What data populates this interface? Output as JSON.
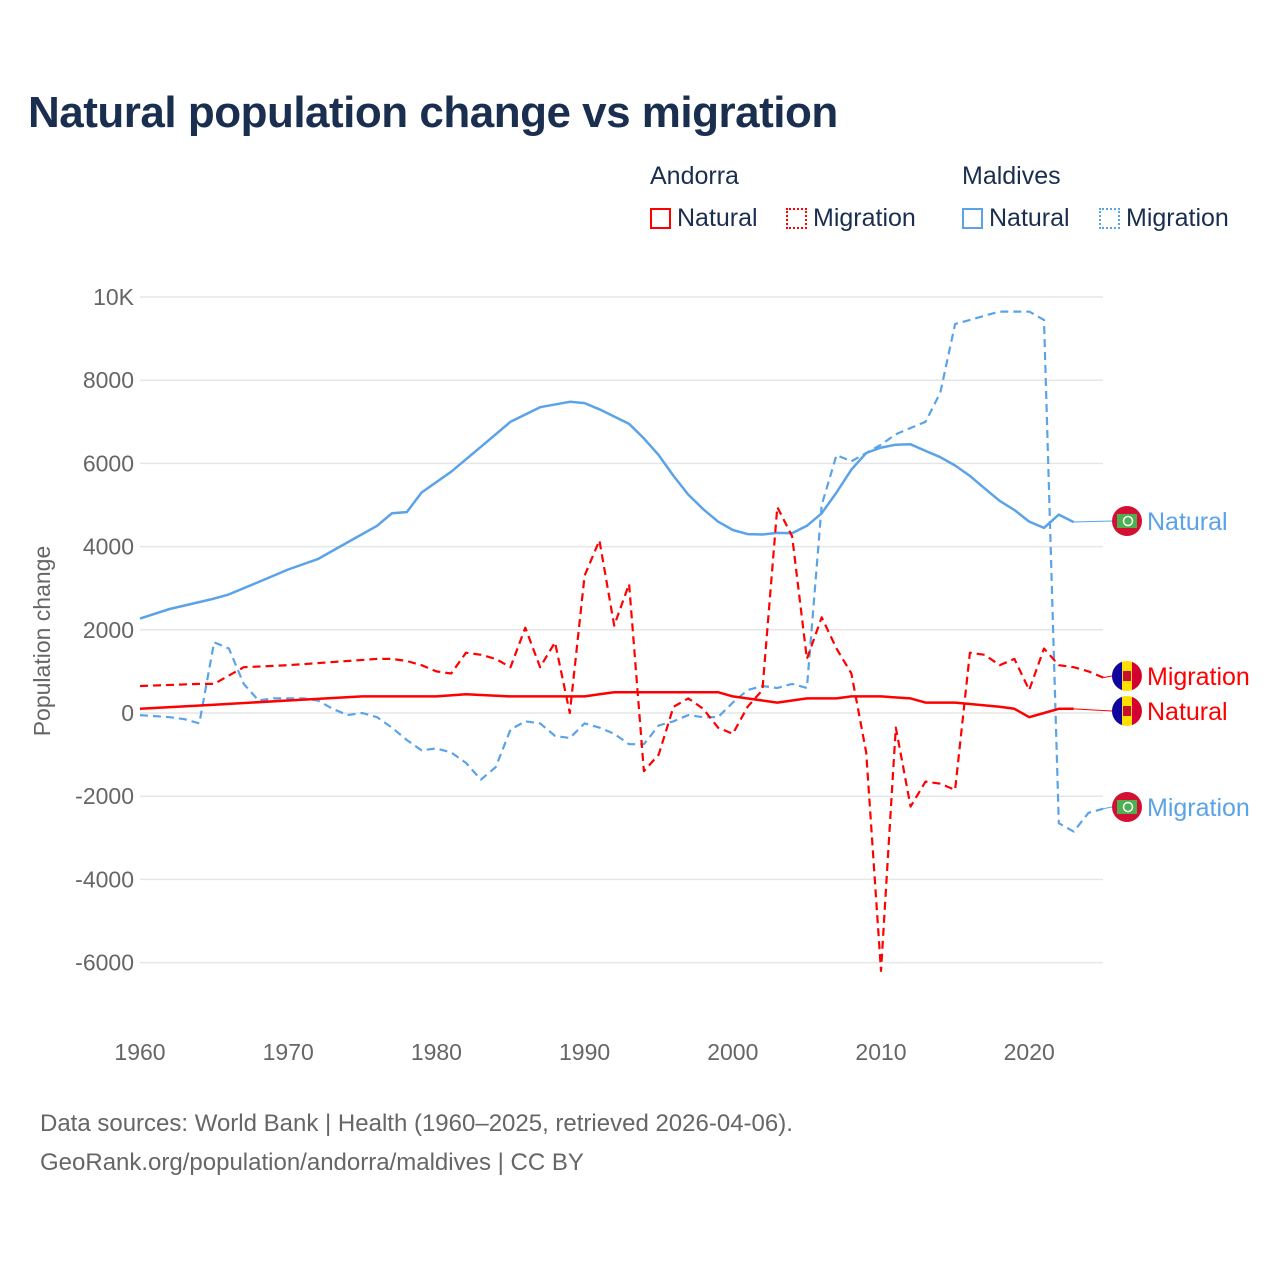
{
  "chart_data": {
    "type": "line",
    "title": "Natural population change vs migration",
    "ylabel": "Population change",
    "xlabel": "",
    "xlim": [
      1960,
      2025
    ],
    "ylim": [
      -7000,
      10000
    ],
    "x_ticks": [
      "1960",
      "1970",
      "1980",
      "1990",
      "2000",
      "2010",
      "2020"
    ],
    "y_ticks": [
      {
        "v": 10000,
        "label": "10K"
      },
      {
        "v": 8000,
        "label": "8000"
      },
      {
        "v": 6000,
        "label": "6000"
      },
      {
        "v": 4000,
        "label": "4000"
      },
      {
        "v": 2000,
        "label": "2000"
      },
      {
        "v": 0,
        "label": "0"
      },
      {
        "v": -2000,
        "label": "-2000"
      },
      {
        "v": -4000,
        "label": "-4000"
      },
      {
        "v": -6000,
        "label": "-6000"
      }
    ],
    "grid": true,
    "legend": {
      "placement": "top-right",
      "groups": [
        "Andorra",
        "Maldives"
      ],
      "items": [
        "Natural",
        "Migration",
        "Natural",
        "Migration"
      ]
    },
    "series": [
      {
        "name": "Maldives Natural",
        "country": "Maldives",
        "kind": "Natural",
        "color": "#5ba3e8",
        "dash": false,
        "end_label": "Natural",
        "x": [
          1960,
          1962,
          1965,
          1966,
          1968,
          1970,
          1972,
          1974,
          1976,
          1977,
          1978,
          1979,
          1981,
          1983,
          1985,
          1987,
          1989,
          1990,
          1991,
          1993,
          1994,
          1995,
          1996,
          1997,
          1998,
          1999,
          2000,
          2001,
          2002,
          2003,
          2004,
          2005,
          2006,
          2007,
          2008,
          2009,
          2010,
          2011,
          2012,
          2013,
          2014,
          2015,
          2016,
          2017,
          2018,
          2019,
          2020,
          2021,
          2022,
          2023
        ],
        "y": [
          2270,
          2500,
          2750,
          2850,
          3150,
          3450,
          3700,
          4100,
          4500,
          4800,
          4830,
          5300,
          5800,
          6400,
          7000,
          7350,
          7480,
          7450,
          7300,
          6950,
          6600,
          6200,
          5700,
          5250,
          4900,
          4600,
          4400,
          4300,
          4290,
          4330,
          4320,
          4500,
          4800,
          5300,
          5850,
          6250,
          6380,
          6450,
          6460,
          6300,
          6150,
          5950,
          5700,
          5400,
          5100,
          4880,
          4600,
          4450,
          4770,
          4590
        ]
      },
      {
        "name": "Maldives Migration",
        "country": "Maldives",
        "kind": "Migration",
        "color": "#5ba3e8",
        "dash": true,
        "end_label": "Migration",
        "x": [
          1960,
          1962,
          1963,
          1964,
          1965,
          1966,
          1967,
          1968,
          1969,
          1970,
          1971,
          1972,
          1973,
          1974,
          1975,
          1976,
          1977,
          1978,
          1979,
          1980,
          1981,
          1982,
          1983,
          1984,
          1985,
          1986,
          1987,
          1988,
          1989,
          1990,
          1991,
          1992,
          1993,
          1994,
          1995,
          1996,
          1997,
          1998,
          1999,
          2000,
          2001,
          2002,
          2003,
          2004,
          2005,
          2006,
          2007,
          2008,
          2009,
          2010,
          2011,
          2012,
          2013,
          2014,
          2015,
          2016,
          2017,
          2018,
          2019,
          2020,
          2021,
          2022,
          2023,
          2024,
          2025
        ],
        "y": [
          -50,
          -100,
          -150,
          -250,
          1700,
          1550,
          700,
          300,
          350,
          350,
          350,
          300,
          100,
          -50,
          0,
          -100,
          -350,
          -650,
          -900,
          -850,
          -950,
          -1200,
          -1600,
          -1300,
          -400,
          -200,
          -250,
          -550,
          -600,
          -250,
          -350,
          -500,
          -750,
          -750,
          -300,
          -200,
          -50,
          -100,
          -100,
          250,
          550,
          650,
          600,
          700,
          600,
          5000,
          6200,
          6050,
          6250,
          6450,
          6700,
          6850,
          7000,
          7700,
          9350,
          9450,
          9550,
          9650,
          9650,
          9650,
          9450,
          -2650,
          -2850,
          -2400,
          -2300
        ]
      },
      {
        "name": "Andorra Natural",
        "country": "Andorra",
        "kind": "Natural",
        "color": "#ff0000",
        "dash": false,
        "end_label": "Natural",
        "x": [
          1960,
          1965,
          1970,
          1975,
          1980,
          1982,
          1985,
          1990,
          1991,
          1992,
          1995,
          1999,
          2000,
          2002,
          2003,
          2005,
          2007,
          2008,
          2010,
          2012,
          2013,
          2015,
          2018,
          2019,
          2020,
          2021,
          2022,
          2023
        ],
        "y": [
          100,
          200,
          300,
          400,
          400,
          450,
          400,
          400,
          450,
          500,
          500,
          500,
          400,
          300,
          250,
          350,
          350,
          400,
          400,
          350,
          250,
          250,
          150,
          100,
          -100,
          0,
          100,
          100
        ]
      },
      {
        "name": "Andorra Migration",
        "country": "Andorra",
        "kind": "Migration",
        "color": "#ff0000",
        "dash": true,
        "end_label": "Migration",
        "x": [
          1960,
          1964,
          1965,
          1966,
          1967,
          1970,
          1974,
          1976,
          1977,
          1978,
          1979,
          1980,
          1981,
          1982,
          1983,
          1984,
          1985,
          1986,
          1987,
          1988,
          1989,
          1990,
          1991,
          1992,
          1993,
          1994,
          1995,
          1996,
          1997,
          1998,
          1999,
          2000,
          2001,
          2002,
          2003,
          2004,
          2005,
          2006,
          2007,
          2008,
          2009,
          2010,
          2011,
          2012,
          2013,
          2014,
          2015,
          2016,
          2017,
          2018,
          2019,
          2020,
          2021,
          2022,
          2023,
          2024,
          2025
        ],
        "y": [
          650,
          700,
          700,
          900,
          1100,
          1150,
          1250,
          1300,
          1300,
          1250,
          1150,
          1000,
          950,
          1450,
          1400,
          1300,
          1100,
          2050,
          1100,
          1700,
          0,
          3300,
          4150,
          2100,
          3100,
          -1400,
          -1000,
          150,
          350,
          100,
          -350,
          -500,
          150,
          550,
          4950,
          4250,
          1300,
          2300,
          1550,
          950,
          -950,
          -6200,
          -350,
          -2250,
          -1650,
          -1700,
          -1850,
          1450,
          1400,
          1150,
          1300,
          550,
          1550,
          1150,
          1100,
          1000,
          850
        ]
      }
    ]
  },
  "sources": {
    "line1": "Data sources: World Bank | Health (1960–2025, retrieved 2026-04-06).",
    "line2": "GeoRank.org/population/andorra/maldives | CC BY"
  }
}
